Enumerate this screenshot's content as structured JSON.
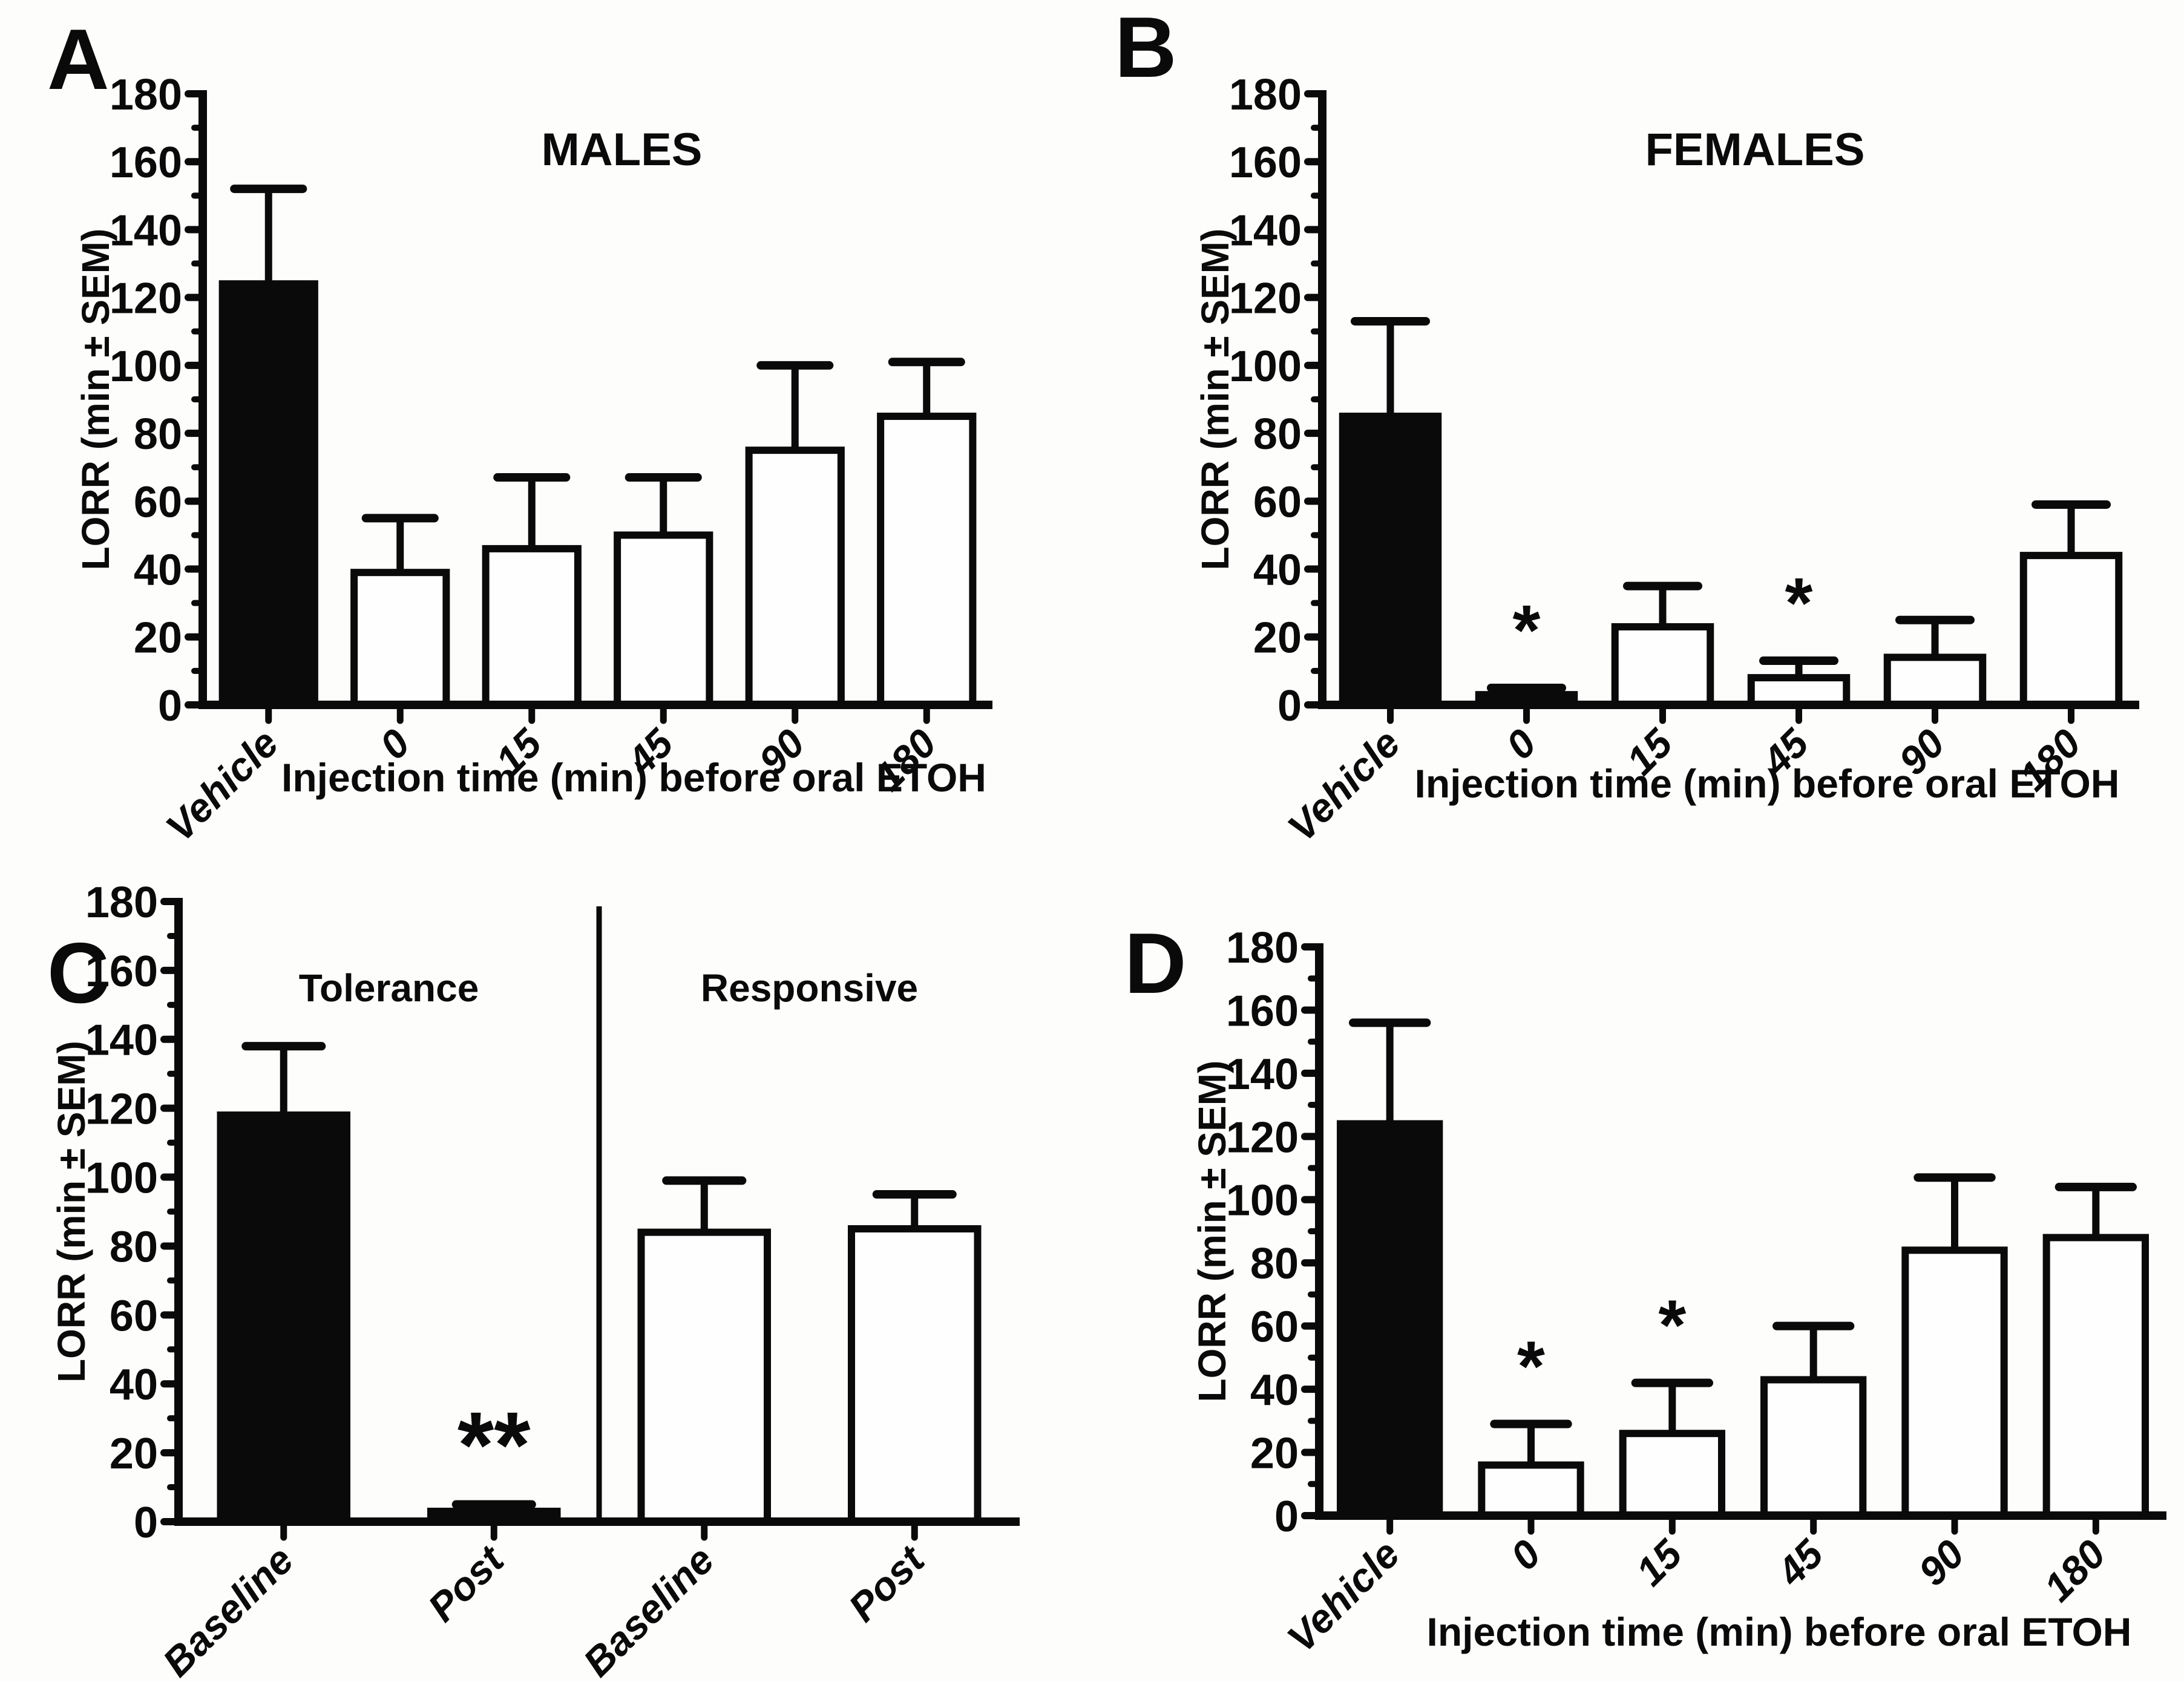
{
  "figure": {
    "background": "#fdfdfb",
    "ink": "#0a0a0a",
    "bar_filled_color": "#0a0a0a",
    "bar_open_color": "#fefefe"
  },
  "chart_data": [
    {
      "panel_letter": "A",
      "type": "bar",
      "title": "MALES",
      "xlabel": "Injection time (min) before oral ETOH",
      "ylabel": "LORR (min ± SEM)",
      "ylim": [
        0,
        180
      ],
      "ytick_step": 20,
      "yminor_step": 10,
      "ytick_labels": [
        "0",
        "20",
        "40",
        "60",
        "80",
        "100",
        "120",
        "140",
        "160",
        "180"
      ],
      "categories": [
        "Vehicle",
        "0",
        "15",
        "45",
        "90",
        "180"
      ],
      "values": [
        124,
        39,
        46,
        50,
        75,
        85
      ],
      "sem_upper": [
        28,
        16,
        21,
        17,
        25,
        16
      ],
      "filled": [
        true,
        false,
        false,
        false,
        false,
        false
      ],
      "significance": [
        "",
        "",
        "",
        "",
        "",
        ""
      ]
    },
    {
      "panel_letter": "B",
      "type": "bar",
      "title": "FEMALES",
      "xlabel": "Injection time (min) before oral ETOH",
      "ylabel": "LORR (min ± SEM)",
      "ylim": [
        0,
        180
      ],
      "ytick_step": 20,
      "yminor_step": 10,
      "ytick_labels": [
        "0",
        "20",
        "40",
        "60",
        "80",
        "100",
        "120",
        "140",
        "160",
        "180"
      ],
      "categories": [
        "Vehicle",
        "0",
        "15",
        "45",
        "90",
        "180"
      ],
      "values": [
        85,
        3,
        23,
        8,
        14,
        44
      ],
      "sem_upper": [
        28,
        2,
        12,
        5,
        11,
        15
      ],
      "filled": [
        true,
        true,
        false,
        false,
        false,
        false
      ],
      "significance": [
        "",
        "*",
        "",
        "*",
        "",
        ""
      ]
    },
    {
      "panel_letter": "C",
      "type": "bar",
      "title": "",
      "group_labels": [
        "Tolerance",
        "Responsive"
      ],
      "divider_after_index": 1,
      "xlabel": "",
      "ylabel": "LORR (min ± SEM)",
      "ylim": [
        0,
        180
      ],
      "ytick_step": 20,
      "yminor_step": 10,
      "ytick_labels": [
        "0",
        "20",
        "40",
        "60",
        "80",
        "100",
        "120",
        "140",
        "160",
        "180"
      ],
      "categories": [
        "Baseline",
        "Post",
        "Baseline",
        "Post"
      ],
      "values": [
        118,
        3,
        84,
        85
      ],
      "sem_upper": [
        20,
        2,
        15,
        10
      ],
      "filled": [
        true,
        true,
        false,
        false
      ],
      "significance": [
        "",
        "**",
        "",
        ""
      ]
    },
    {
      "panel_letter": "D",
      "type": "bar",
      "title": "",
      "xlabel": "Injection time (min) before oral ETOH",
      "ylabel": "LORR (min ± SEM)",
      "ylim": [
        0,
        180
      ],
      "ytick_step": 20,
      "yminor_step": 10,
      "ytick_labels": [
        "0",
        "20",
        "40",
        "60",
        "80",
        "100",
        "120",
        "140",
        "160",
        "180"
      ],
      "categories": [
        "Vehicle",
        "0",
        "15",
        "45",
        "90",
        "180"
      ],
      "values": [
        124,
        16,
        26,
        43,
        84,
        88
      ],
      "sem_upper": [
        32,
        13,
        16,
        17,
        23,
        16
      ],
      "filled": [
        true,
        false,
        false,
        false,
        false,
        false
      ],
      "significance": [
        "",
        "*",
        "*",
        "",
        "",
        ""
      ]
    }
  ]
}
